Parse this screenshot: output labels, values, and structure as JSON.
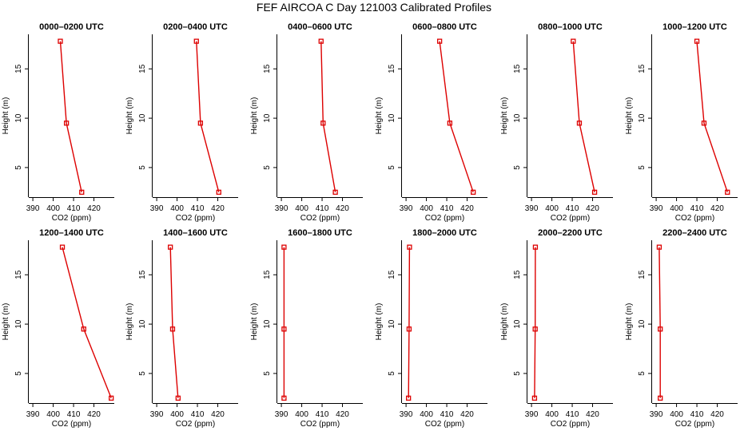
{
  "title": "FEF AIRCOA C  Day 121003  Calibrated Profiles",
  "colors": {
    "profile": "#dd0000",
    "axis": "#000000"
  },
  "chart_data": [
    {
      "type": "line",
      "title": "0000–0200 UTC",
      "xlabel": "CO2 (ppm)",
      "ylabel": "Height (m)",
      "xlim": [
        388,
        430
      ],
      "ylim": [
        2,
        18.5
      ],
      "xticks": [
        390,
        400,
        410,
        420
      ],
      "yticks": [
        5,
        10,
        15
      ],
      "series": [
        {
          "x": [
            414,
            406.5,
            403.5
          ],
          "y": [
            2.5,
            9.5,
            17.8
          ]
        }
      ]
    },
    {
      "type": "line",
      "title": "0200–0400 UTC",
      "xlabel": "CO2 (ppm)",
      "ylabel": "Height (m)",
      "xlim": [
        388,
        430
      ],
      "ylim": [
        2,
        18.5
      ],
      "xticks": [
        390,
        400,
        410,
        420
      ],
      "yticks": [
        5,
        10,
        15
      ],
      "series": [
        {
          "x": [
            420.5,
            411.5,
            409.5
          ],
          "y": [
            2.5,
            9.5,
            17.8
          ]
        }
      ]
    },
    {
      "type": "line",
      "title": "0400–0600 UTC",
      "xlabel": "CO2 (ppm)",
      "ylabel": "Height (m)",
      "xlim": [
        388,
        430
      ],
      "ylim": [
        2,
        18.5
      ],
      "xticks": [
        390,
        400,
        410,
        420
      ],
      "yticks": [
        5,
        10,
        15
      ],
      "series": [
        {
          "x": [
            416.5,
            410.5,
            409.5
          ],
          "y": [
            2.5,
            9.5,
            17.8
          ]
        }
      ]
    },
    {
      "type": "line",
      "title": "0600–0800 UTC",
      "xlabel": "CO2 (ppm)",
      "ylabel": "Height (m)",
      "xlim": [
        388,
        430
      ],
      "ylim": [
        2,
        18.5
      ],
      "xticks": [
        390,
        400,
        410,
        420
      ],
      "yticks": [
        5,
        10,
        15
      ],
      "series": [
        {
          "x": [
            423,
            411.5,
            406.5
          ],
          "y": [
            2.5,
            9.5,
            17.8
          ]
        }
      ]
    },
    {
      "type": "line",
      "title": "0800–1000 UTC",
      "xlabel": "CO2 (ppm)",
      "ylabel": "Height (m)",
      "xlim": [
        388,
        430
      ],
      "ylim": [
        2,
        18.5
      ],
      "xticks": [
        390,
        400,
        410,
        420
      ],
      "yticks": [
        5,
        10,
        15
      ],
      "series": [
        {
          "x": [
            421,
            413.5,
            410.5
          ],
          "y": [
            2.5,
            9.5,
            17.8
          ]
        }
      ]
    },
    {
      "type": "line",
      "title": "1000–1200 UTC",
      "xlabel": "CO2 (ppm)",
      "ylabel": "Height (m)",
      "xlim": [
        388,
        430
      ],
      "ylim": [
        2,
        18.5
      ],
      "xticks": [
        390,
        400,
        410,
        420
      ],
      "yticks": [
        5,
        10,
        15
      ],
      "series": [
        {
          "x": [
            425,
            413.5,
            410
          ],
          "y": [
            2.5,
            9.5,
            17.8
          ]
        }
      ]
    },
    {
      "type": "line",
      "title": "1200–1400 UTC",
      "xlabel": "CO2 (ppm)",
      "ylabel": "Height (m)",
      "xlim": [
        388,
        430
      ],
      "ylim": [
        2,
        18.5
      ],
      "xticks": [
        390,
        400,
        410,
        420
      ],
      "yticks": [
        5,
        10,
        15
      ],
      "series": [
        {
          "x": [
            428.5,
            415,
            404.5
          ],
          "y": [
            2.5,
            9.5,
            17.8
          ]
        }
      ]
    },
    {
      "type": "line",
      "title": "1400–1600 UTC",
      "xlabel": "CO2 (ppm)",
      "ylabel": "Height (m)",
      "xlim": [
        388,
        430
      ],
      "ylim": [
        2,
        18.5
      ],
      "xticks": [
        390,
        400,
        410,
        420
      ],
      "yticks": [
        5,
        10,
        15
      ],
      "series": [
        {
          "x": [
            400.5,
            397.8,
            396.7
          ],
          "y": [
            2.5,
            9.5,
            17.8
          ]
        }
      ]
    },
    {
      "type": "line",
      "title": "1600–1800 UTC",
      "xlabel": "CO2 (ppm)",
      "ylabel": "Height (m)",
      "xlim": [
        388,
        430
      ],
      "ylim": [
        2,
        18.5
      ],
      "xticks": [
        390,
        400,
        410,
        420
      ],
      "yticks": [
        5,
        10,
        15
      ],
      "series": [
        {
          "x": [
            391.3,
            391.3,
            391.3
          ],
          "y": [
            2.5,
            9.5,
            17.8
          ]
        }
      ]
    },
    {
      "type": "line",
      "title": "1800–2000 UTC",
      "xlabel": "CO2 (ppm)",
      "ylabel": "Height (m)",
      "xlim": [
        388,
        430
      ],
      "ylim": [
        2,
        18.5
      ],
      "xticks": [
        390,
        400,
        410,
        420
      ],
      "yticks": [
        5,
        10,
        15
      ],
      "series": [
        {
          "x": [
            391.2,
            391.5,
            391.7
          ],
          "y": [
            2.5,
            9.5,
            17.8
          ]
        }
      ]
    },
    {
      "type": "line",
      "title": "2000–2200 UTC",
      "xlabel": "CO2 (ppm)",
      "ylabel": "Height (m)",
      "xlim": [
        388,
        430
      ],
      "ylim": [
        2,
        18.5
      ],
      "xticks": [
        390,
        400,
        410,
        420
      ],
      "yticks": [
        5,
        10,
        15
      ],
      "series": [
        {
          "x": [
            391.5,
            391.8,
            391.9
          ],
          "y": [
            2.5,
            9.5,
            17.8
          ]
        }
      ]
    },
    {
      "type": "line",
      "title": "2200–2400 UTC",
      "xlabel": "CO2 (ppm)",
      "ylabel": "Height (m)",
      "xlim": [
        388,
        430
      ],
      "ylim": [
        2,
        18.5
      ],
      "xticks": [
        390,
        400,
        410,
        420
      ],
      "yticks": [
        5,
        10,
        15
      ],
      "series": [
        {
          "x": [
            392,
            392,
            391.5
          ],
          "y": [
            2.5,
            9.5,
            17.8
          ]
        }
      ]
    }
  ]
}
